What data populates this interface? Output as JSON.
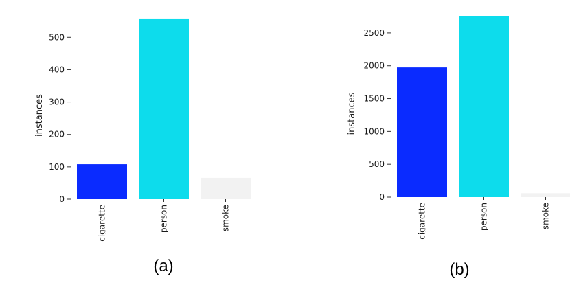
{
  "chart_data": [
    {
      "type": "bar",
      "panel_label": "(a)",
      "categories": [
        "cigarette",
        "person",
        "smoke"
      ],
      "values": [
        108,
        558,
        66
      ],
      "colors": [
        "#0a2bff",
        "#0ddcec",
        "#f2f2f2"
      ],
      "ylabel": "instances",
      "yticks": [
        0,
        100,
        200,
        300,
        400,
        500
      ],
      "ylim": [
        0,
        560
      ],
      "grid": false
    },
    {
      "type": "bar",
      "panel_label": "(b)",
      "categories": [
        "cigarette",
        "person",
        "smoke"
      ],
      "values": [
        1975,
        2750,
        60
      ],
      "colors": [
        "#0a2bff",
        "#0ddcec",
        "#f2f2f2"
      ],
      "ylabel": "instances",
      "yticks": [
        0,
        500,
        1000,
        1500,
        2000,
        2500
      ],
      "ylim": [
        0,
        2750
      ],
      "grid": false
    }
  ]
}
